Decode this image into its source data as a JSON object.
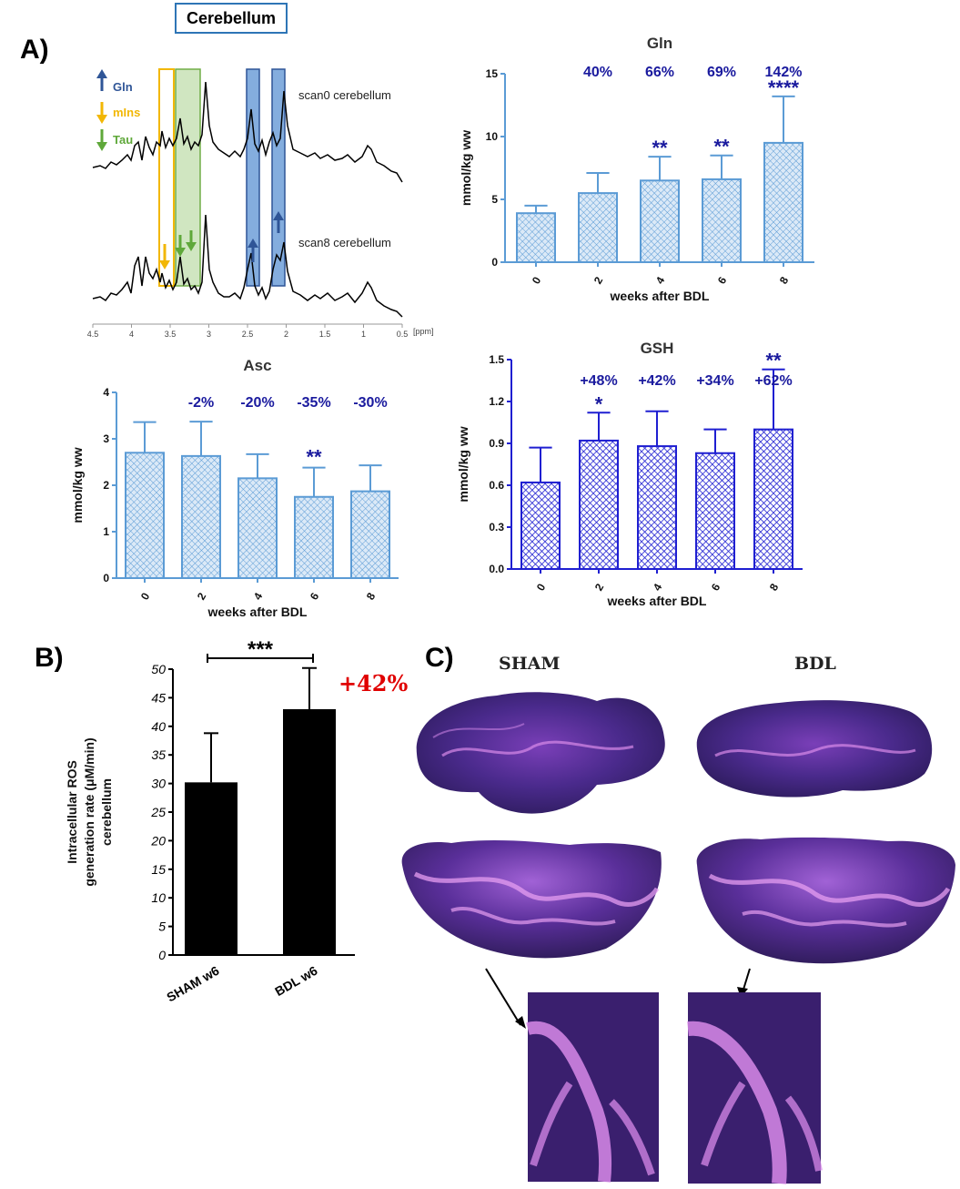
{
  "header": {
    "box_label": "Cerebellum"
  },
  "panels": {
    "a": "A)",
    "b": "B)",
    "c": "C)"
  },
  "spectra": {
    "legend": [
      {
        "label": "Gln",
        "color": "#2f5597",
        "dir": "up"
      },
      {
        "label": "mIns",
        "color": "#f2b705",
        "dir": "down"
      },
      {
        "label": "Tau",
        "color": "#5fa83a",
        "dir": "down"
      }
    ],
    "trace_top_label": "scan0 cerebellum",
    "trace_bottom_label": "scan8 cerebellum",
    "axis_ticks": [
      "4.5",
      "4",
      "3.5",
      "3",
      "2.5",
      "2",
      "1.5",
      "1",
      "0.5"
    ],
    "axis_unit": "[ppm]"
  },
  "chart_data": [
    {
      "type": "bar",
      "title": "Gln",
      "ylabel": "mmol/kg ww",
      "xlabel": "weeks after BDL",
      "categories": [
        "0",
        "2",
        "4",
        "6",
        "8"
      ],
      "values": [
        3.9,
        5.5,
        6.5,
        6.6,
        9.5
      ],
      "errors": [
        0.6,
        1.6,
        1.9,
        1.9,
        3.7
      ],
      "ylim": [
        0,
        15
      ],
      "yticks": [
        "0",
        "5",
        "10",
        "15"
      ],
      "percent_labels": [
        "",
        "40%",
        "66%",
        "69%",
        "142%"
      ],
      "significance": [
        "",
        "",
        "**",
        "**",
        "****"
      ],
      "bar_color": "#5b9bd5"
    },
    {
      "type": "bar",
      "title": "Asc",
      "ylabel": "mmol/kg ww",
      "xlabel": "weeks after BDL",
      "categories": [
        "0",
        "2",
        "4",
        "6",
        "8"
      ],
      "values": [
        2.7,
        2.63,
        2.15,
        1.75,
        1.87
      ],
      "errors": [
        0.66,
        0.74,
        0.52,
        0.63,
        0.56
      ],
      "ylim": [
        0,
        4
      ],
      "yticks": [
        "0",
        "1",
        "2",
        "3",
        "4"
      ],
      "percent_labels": [
        "",
        "-2%",
        "-20%",
        "-35%",
        "-30%"
      ],
      "significance": [
        "",
        "",
        "",
        "**",
        ""
      ],
      "bar_color": "#5b9bd5"
    },
    {
      "type": "bar",
      "title": "GSH",
      "ylabel": "mmol/kg ww",
      "xlabel": "weeks after BDL",
      "categories": [
        "0",
        "2",
        "4",
        "6",
        "8"
      ],
      "values": [
        0.62,
        0.92,
        0.88,
        0.83,
        1.0
      ],
      "errors": [
        0.25,
        0.2,
        0.25,
        0.17,
        0.43
      ],
      "ylim": [
        0,
        1.5
      ],
      "yticks": [
        "0.0",
        "0.3",
        "0.6",
        "0.9",
        "1.2",
        "1.5"
      ],
      "percent_labels": [
        "",
        "+48%",
        "+42%",
        "+34%",
        "+62%"
      ],
      "significance": [
        "",
        "*",
        "",
        "",
        "**"
      ],
      "bar_color": "#1f1fd1"
    },
    {
      "type": "bar",
      "title": "",
      "ylabel": "Intracellular ROS generation rate (μM/min) cerebellum",
      "xlabel": "",
      "categories": [
        "SHAM w6",
        "BDL w6"
      ],
      "values": [
        30.2,
        43
      ],
      "errors": [
        8.6,
        7.2
      ],
      "ylim": [
        0,
        50
      ],
      "yticks": [
        "0",
        "5",
        "10",
        "15",
        "20",
        "25",
        "30",
        "35",
        "40",
        "45",
        "50"
      ],
      "significance_bracket": "***",
      "change_label": "+42%",
      "bar_color": "#000000"
    }
  ],
  "histology": {
    "left_label": "SHAM",
    "right_label": "BDL"
  }
}
